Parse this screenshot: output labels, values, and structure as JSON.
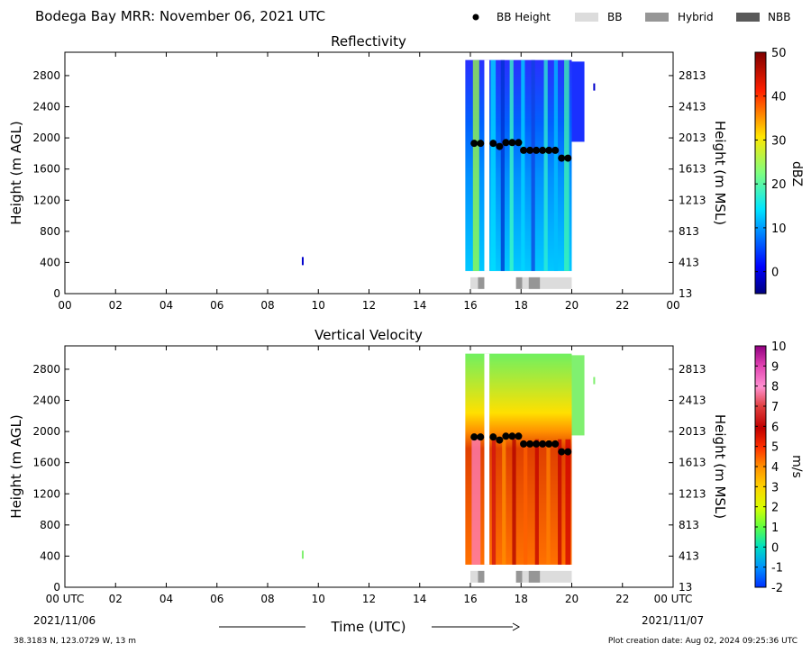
{
  "header": {
    "title": "Bodega Bay MRR:  November 06, 2021 UTC",
    "legend": [
      {
        "label": "BB Height",
        "kind": "dot",
        "color": "#000000"
      },
      {
        "label": "BB",
        "kind": "box",
        "color": "#dcdcdc"
      },
      {
        "label": "Hybrid",
        "kind": "box",
        "color": "#969696"
      },
      {
        "label": "NBB",
        "kind": "box",
        "color": "#595959"
      }
    ]
  },
  "footer": {
    "location": "38.3183 N, 123.0729 W, 13 m",
    "created": "Plot creation date: Aug 02, 2024 09:25:36 UTC",
    "xlabel": "Time (UTC)",
    "start_date": "2021/11/06",
    "end_date": "2021/11/07"
  },
  "chart_data": [
    {
      "type": "heatmap",
      "title": "Reflectivity",
      "ylabel_left": "Height (m AGL)",
      "ylabel_right": "Height (m MSL)",
      "xlim": [
        0,
        24
      ],
      "ylim": [
        0,
        3100
      ],
      "x_ticks": [
        "00",
        "02",
        "04",
        "06",
        "08",
        "10",
        "12",
        "14",
        "16",
        "18",
        "20",
        "22",
        "00"
      ],
      "y_ticks_left": [
        0,
        400,
        800,
        1200,
        1600,
        2000,
        2400,
        2800
      ],
      "y_ticks_right": [
        "13",
        "413",
        "813",
        "1213",
        "1613",
        "2013",
        "2413",
        "2813"
      ],
      "colorbar": {
        "label": "dBZ",
        "range": [
          -5,
          50
        ],
        "ticks": [
          0,
          10,
          20,
          30,
          40,
          50
        ],
        "scheme": "jet"
      },
      "echo_period_utc": [
        15.8,
        20.0
      ],
      "bb_height_points": [
        [
          16.15,
          1930
        ],
        [
          16.4,
          1930
        ],
        [
          16.9,
          1930
        ],
        [
          17.15,
          1890
        ],
        [
          17.4,
          1940
        ],
        [
          17.65,
          1940
        ],
        [
          17.9,
          1940
        ],
        [
          18.1,
          1840
        ],
        [
          18.35,
          1840
        ],
        [
          18.6,
          1840
        ],
        [
          18.85,
          1840
        ],
        [
          19.1,
          1840
        ],
        [
          19.35,
          1840
        ],
        [
          19.6,
          1740
        ],
        [
          19.85,
          1740
        ]
      ],
      "bb_type_segments": [
        {
          "start": 16.0,
          "end": 16.3,
          "type": "BB"
        },
        {
          "start": 16.3,
          "end": 16.55,
          "type": "Hybrid"
        },
        {
          "start": 17.8,
          "end": 18.05,
          "type": "Hybrid"
        },
        {
          "start": 18.05,
          "end": 18.3,
          "type": "BB"
        },
        {
          "start": 18.3,
          "end": 18.75,
          "type": "Hybrid"
        },
        {
          "start": 18.75,
          "end": 20.0,
          "type": "BB"
        }
      ]
    },
    {
      "type": "heatmap",
      "title": "Vertical Velocity",
      "ylabel_left": "Height (m AGL)",
      "ylabel_right": "Height (m MSL)",
      "xlim": [
        0,
        24
      ],
      "ylim": [
        0,
        3100
      ],
      "x_ticks": [
        "00 UTC",
        "02",
        "04",
        "06",
        "08",
        "10",
        "12",
        "14",
        "16",
        "18",
        "20",
        "22",
        "00 UTC"
      ],
      "y_ticks_left": [
        0,
        400,
        800,
        1200,
        1600,
        2000,
        2400,
        2800
      ],
      "y_ticks_right": [
        "13",
        "413",
        "813",
        "1213",
        "1613",
        "2013",
        "2413",
        "2813"
      ],
      "colorbar": {
        "label": "m/s",
        "range": [
          -2,
          10
        ],
        "ticks": [
          -2,
          -1,
          0,
          1,
          2,
          3,
          4,
          5,
          6,
          7,
          8,
          9,
          10
        ],
        "scheme": "velocity"
      },
      "echo_period_utc": [
        15.8,
        20.0
      ],
      "bb_height_points": [
        [
          16.15,
          1930
        ],
        [
          16.4,
          1930
        ],
        [
          16.9,
          1930
        ],
        [
          17.15,
          1890
        ],
        [
          17.4,
          1940
        ],
        [
          17.65,
          1940
        ],
        [
          17.9,
          1940
        ],
        [
          18.1,
          1840
        ],
        [
          18.35,
          1840
        ],
        [
          18.6,
          1840
        ],
        [
          18.85,
          1840
        ],
        [
          19.1,
          1840
        ],
        [
          19.35,
          1840
        ],
        [
          19.6,
          1740
        ],
        [
          19.85,
          1740
        ]
      ],
      "bb_type_segments": [
        {
          "start": 16.0,
          "end": 16.3,
          "type": "BB"
        },
        {
          "start": 16.3,
          "end": 16.55,
          "type": "Hybrid"
        },
        {
          "start": 17.8,
          "end": 18.05,
          "type": "Hybrid"
        },
        {
          "start": 18.05,
          "end": 18.3,
          "type": "BB"
        },
        {
          "start": 18.3,
          "end": 18.75,
          "type": "Hybrid"
        },
        {
          "start": 18.75,
          "end": 20.0,
          "type": "BB"
        }
      ]
    }
  ]
}
